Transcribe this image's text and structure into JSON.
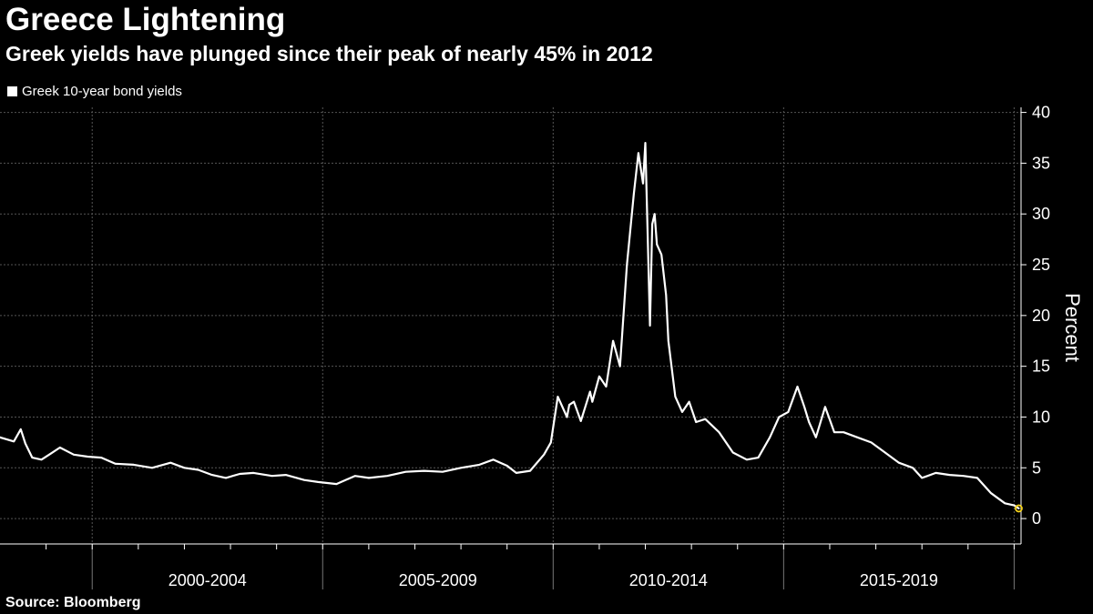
{
  "header": {
    "title": "Greece Lightening",
    "subtitle": "Greek yields have plunged since their peak of nearly 45% in 2012"
  },
  "footer": {
    "source": "Source: Bloomberg"
  },
  "colors": {
    "background": "#000000",
    "line": "#ffffff",
    "grid": "#555555",
    "latest_marker": "#f5d31c"
  },
  "chart_data": {
    "type": "line",
    "title": "Greece Lightening",
    "subtitle": "Greek yields have plunged since their peak of nearly 45% in 2012",
    "xlabel": "",
    "ylabel": "Percent",
    "ylim": [
      -2.5,
      40.5
    ],
    "xlim": [
      1998.0,
      2020.15
    ],
    "yticks": [
      0,
      5,
      10,
      15,
      20,
      25,
      30,
      35,
      40
    ],
    "xticks": [
      2000,
      2005,
      2010,
      2015,
      2020
    ],
    "x_category_labels": [
      {
        "label": "2000-2004",
        "center": 2002.5
      },
      {
        "label": "2005-2009",
        "center": 2007.5
      },
      {
        "label": "2010-2014",
        "center": 2012.5
      },
      {
        "label": "2015-2019",
        "center": 2017.5
      }
    ],
    "grid": true,
    "legend_position": "top-left",
    "series": [
      {
        "name": "Greek 10-year bond yields",
        "x": [
          1998.0,
          1998.3,
          1998.45,
          1998.55,
          1998.7,
          1998.9,
          1999.1,
          1999.3,
          1999.6,
          1999.9,
          2000.2,
          2000.5,
          2000.9,
          2001.3,
          2001.7,
          2002.0,
          2002.3,
          2002.6,
          2002.9,
          2003.2,
          2003.5,
          2003.9,
          2004.2,
          2004.6,
          2004.9,
          2005.3,
          2005.7,
          2006.0,
          2006.4,
          2006.8,
          2007.2,
          2007.6,
          2008.0,
          2008.4,
          2008.7,
          2009.0,
          2009.2,
          2009.5,
          2009.8,
          2009.95,
          2010.1,
          2010.3,
          2010.35,
          2010.45,
          2010.6,
          2010.8,
          2010.85,
          2011.0,
          2011.15,
          2011.3,
          2011.45,
          2011.6,
          2011.75,
          2011.85,
          2011.95,
          2012.0,
          2012.1,
          2012.15,
          2012.2,
          2012.25,
          2012.35,
          2012.45,
          2012.5,
          2012.65,
          2012.8,
          2012.95,
          2013.1,
          2013.3,
          2013.6,
          2013.9,
          2014.2,
          2014.45,
          2014.7,
          2014.9,
          2015.1,
          2015.3,
          2015.45,
          2015.55,
          2015.7,
          2015.9,
          2016.1,
          2016.3,
          2016.6,
          2016.9,
          2017.2,
          2017.5,
          2017.8,
          2018.0,
          2018.3,
          2018.6,
          2018.9,
          2019.2,
          2019.5,
          2019.8,
          2020.0,
          2020.1
        ],
        "values": [
          8.0,
          7.6,
          8.8,
          7.4,
          6.0,
          5.8,
          6.4,
          7.0,
          6.3,
          6.1,
          6.0,
          5.4,
          5.3,
          5.0,
          5.5,
          5.0,
          4.8,
          4.3,
          4.0,
          4.4,
          4.5,
          4.2,
          4.3,
          3.8,
          3.6,
          3.4,
          4.2,
          4.0,
          4.2,
          4.6,
          4.7,
          4.6,
          5.0,
          5.3,
          5.8,
          5.2,
          4.5,
          4.7,
          6.3,
          7.5,
          12.0,
          10.0,
          11.2,
          11.5,
          9.6,
          12.5,
          11.5,
          14.0,
          13.0,
          17.5,
          15.0,
          25.0,
          32.0,
          36.0,
          33.0,
          37.0,
          19.0,
          29.0,
          30.0,
          27.0,
          26.0,
          22.0,
          17.5,
          12.0,
          10.5,
          11.5,
          9.5,
          9.8,
          8.5,
          6.5,
          5.8,
          6.0,
          8.0,
          10.0,
          10.5,
          13.0,
          11.0,
          9.5,
          8.0,
          11.0,
          8.5,
          8.5,
          8.0,
          7.5,
          6.5,
          5.5,
          5.0,
          4.0,
          4.5,
          4.3,
          4.2,
          4.0,
          2.5,
          1.5,
          1.3,
          1.0
        ]
      }
    ],
    "latest_value": {
      "x": 2020.1,
      "value": 1.0
    }
  }
}
